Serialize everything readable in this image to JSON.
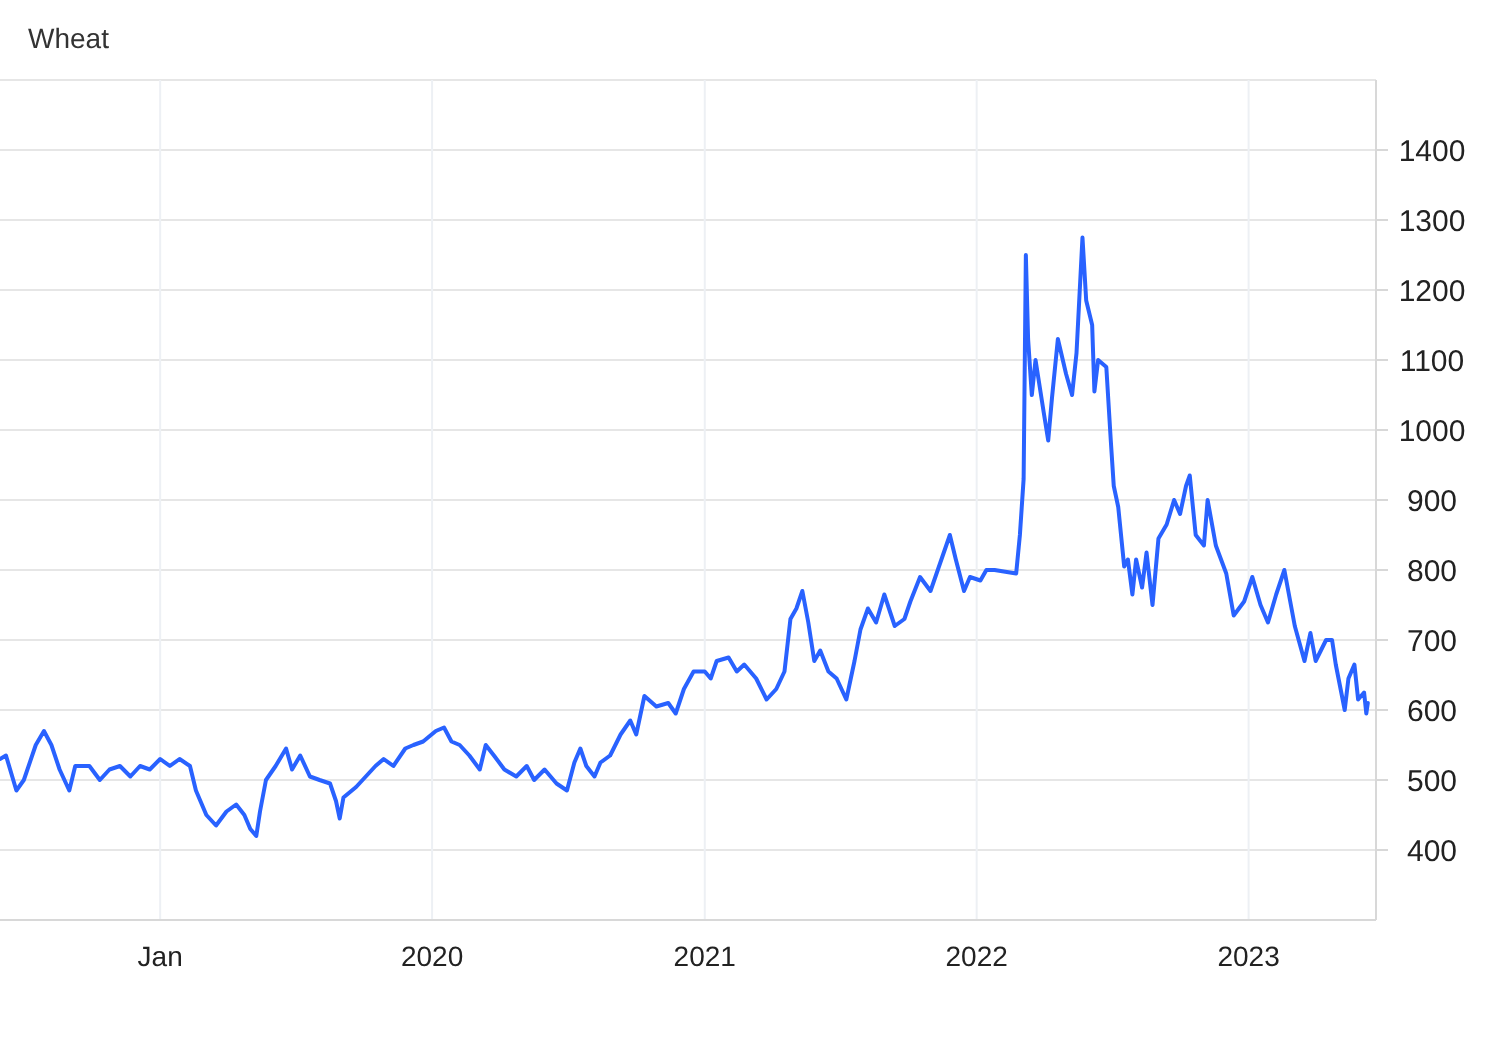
{
  "chart_data": {
    "type": "line",
    "title": "Wheat",
    "x": [
      "2018-05-31",
      "2018-06-08",
      "2018-06-22",
      "2018-07-02",
      "2018-07-18",
      "2018-07-29",
      "2018-08-08",
      "2018-08-19",
      "2018-09-01",
      "2018-09-09",
      "2018-09-28",
      "2018-10-12",
      "2018-10-25",
      "2018-11-08",
      "2018-11-22",
      "2018-12-05",
      "2018-12-18",
      "2019-01-01",
      "2019-01-14",
      "2019-01-27",
      "2019-02-10",
      "2019-02-18",
      "2019-03-04",
      "2019-03-17",
      "2019-03-31",
      "2019-04-13",
      "2019-04-24",
      "2019-05-02",
      "2019-05-10",
      "2019-05-15",
      "2019-05-23",
      "2019-06-05",
      "2019-06-19",
      "2019-06-27",
      "2019-07-08",
      "2019-07-21",
      "2019-08-03",
      "2019-08-17",
      "2019-08-25",
      "2019-08-30",
      "2019-09-04",
      "2019-09-21",
      "2019-10-04",
      "2019-10-17",
      "2019-10-28",
      "2019-11-10",
      "2019-11-26",
      "2019-12-07",
      "2019-12-20",
      "2020-01-06",
      "2020-01-17",
      "2020-01-27",
      "2020-02-07",
      "2020-02-20",
      "2020-03-05",
      "2020-03-13",
      "2020-03-24",
      "2020-04-07",
      "2020-04-23",
      "2020-05-07",
      "2020-05-17",
      "2020-05-31",
      "2020-06-16",
      "2020-06-30",
      "2020-07-10",
      "2020-07-18",
      "2020-07-26",
      "2020-08-06",
      "2020-08-14",
      "2020-08-27",
      "2020-09-10",
      "2020-09-23",
      "2020-10-01",
      "2020-10-12",
      "2020-10-28",
      "2020-11-13",
      "2020-11-23",
      "2020-12-04",
      "2020-12-17",
      "2021-01-01",
      "2021-01-09",
      "2021-01-17",
      "2021-02-02",
      "2021-02-13",
      "2021-02-23",
      "2021-03-11",
      "2021-03-25",
      "2021-04-07",
      "2021-04-18",
      "2021-04-26",
      "2021-05-04",
      "2021-05-12",
      "2021-05-20",
      "2021-05-28",
      "2021-06-05",
      "2021-06-16",
      "2021-06-27",
      "2021-07-10",
      "2021-07-21",
      "2021-07-29",
      "2021-08-08",
      "2021-08-19",
      "2021-08-30",
      "2021-09-13",
      "2021-09-26",
      "2021-10-04",
      "2021-10-17",
      "2021-10-31",
      "2021-11-13",
      "2021-11-26",
      "2021-12-04",
      "2021-12-15",
      "2021-12-23",
      "2022-01-06",
      "2022-01-14",
      "2022-01-25",
      "2022-02-23",
      "2022-02-28",
      "2022-03-05",
      "2022-03-08",
      "2022-03-11",
      "2022-03-16",
      "2022-03-21",
      "2022-04-01",
      "2022-04-07",
      "2022-04-12",
      "2022-04-20",
      "2022-05-01",
      "2022-05-09",
      "2022-05-15",
      "2022-05-23",
      "2022-05-28",
      "2022-06-05",
      "2022-06-08",
      "2022-06-13",
      "2022-06-24",
      "2022-06-30",
      "2022-07-04",
      "2022-07-10",
      "2022-07-18",
      "2022-07-23",
      "2022-07-29",
      "2022-08-03",
      "2022-08-11",
      "2022-08-17",
      "2022-08-25",
      "2022-09-02",
      "2022-09-13",
      "2022-09-23",
      "2022-10-01",
      "2022-10-09",
      "2022-10-14",
      "2022-10-22",
      "2022-11-02",
      "2022-11-07",
      "2022-11-18",
      "2022-12-02",
      "2022-12-12",
      "2022-12-26",
      "2023-01-06",
      "2023-01-17",
      "2023-01-27",
      "2023-02-07",
      "2023-02-18",
      "2023-03-04",
      "2023-03-17",
      "2023-03-25",
      "2023-04-01",
      "2023-04-15",
      "2023-04-23",
      "2023-04-28",
      "2023-05-10",
      "2023-05-15",
      "2023-05-23",
      "2023-05-28",
      "2023-06-05",
      "2023-06-08",
      "2023-06-10"
    ],
    "series": [
      {
        "color": "#2962ff",
        "values": [
          530,
          535,
          485,
          500,
          550,
          570,
          550,
          515,
          485,
          520,
          520,
          500,
          515,
          520,
          505,
          520,
          515,
          530,
          520,
          530,
          520,
          485,
          450,
          435,
          455,
          465,
          450,
          430,
          420,
          455,
          500,
          520,
          545,
          515,
          535,
          505,
          500,
          495,
          470,
          445,
          475,
          490,
          505,
          520,
          530,
          520,
          545,
          550,
          555,
          570,
          575,
          555,
          550,
          535,
          515,
          550,
          535,
          515,
          505,
          520,
          500,
          515,
          495,
          485,
          525,
          545,
          520,
          505,
          525,
          535,
          565,
          585,
          565,
          620,
          605,
          610,
          595,
          630,
          655,
          655,
          645,
          670,
          675,
          655,
          665,
          645,
          615,
          630,
          655,
          730,
          745,
          770,
          725,
          670,
          685,
          655,
          645,
          615,
          670,
          715,
          745,
          725,
          765,
          720,
          730,
          755,
          790,
          770,
          810,
          850,
          815,
          770,
          790,
          785,
          800,
          800,
          795,
          850,
          930,
          1250,
          1130,
          1050,
          1100,
          1025,
          985,
          1045,
          1130,
          1080,
          1050,
          1110,
          1275,
          1185,
          1150,
          1055,
          1100,
          1090,
          985,
          920,
          890,
          805,
          815,
          765,
          815,
          775,
          825,
          750,
          845,
          865,
          900,
          880,
          920,
          935,
          850,
          835,
          900,
          835,
          795,
          735,
          755,
          790,
          750,
          725,
          765,
          800,
          720,
          670,
          710,
          670,
          700,
          700,
          665,
          600,
          645,
          665,
          615,
          625,
          595,
          610
        ]
      }
    ],
    "xlim": [
      "2018-05-31",
      "2023-06-21"
    ],
    "xticks": [
      {
        "value": "2019-01-01",
        "label": "Jan"
      },
      {
        "value": "2020-01-01",
        "label": "2020"
      },
      {
        "value": "2021-01-01",
        "label": "2021"
      },
      {
        "value": "2022-01-01",
        "label": "2022"
      },
      {
        "value": "2023-01-01",
        "label": "2023"
      }
    ],
    "ylim": [
      300,
      1500
    ],
    "yticks": [
      400,
      500,
      600,
      700,
      800,
      900,
      1000,
      1100,
      1200,
      1300,
      1400
    ],
    "grid": true,
    "line_style": "solid",
    "marker": "none"
  }
}
